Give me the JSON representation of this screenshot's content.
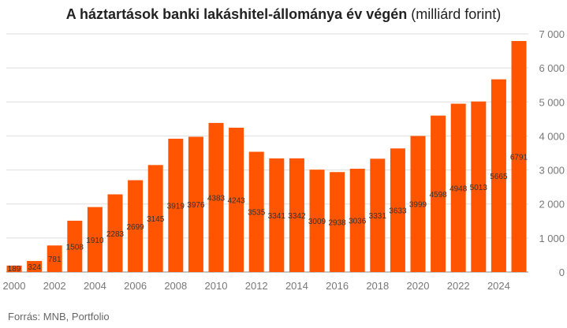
{
  "chart_data": {
    "type": "bar",
    "title": "A háztartások banki lakáshitel-állománya év végén",
    "subtitle": "(milliárd forint)",
    "xlabel": "",
    "ylabel": "",
    "categories": [
      "2000",
      "2001",
      "2002",
      "2003",
      "2004",
      "2005",
      "2006",
      "2007",
      "2008",
      "2009",
      "2010",
      "2011",
      "2012",
      "2013",
      "2014",
      "2015",
      "2016",
      "2017",
      "2018",
      "2019",
      "2020",
      "2021",
      "2022",
      "2023",
      "2024",
      "2025"
    ],
    "values": [
      189,
      324,
      781,
      1508,
      1910,
      2283,
      2699,
      3145,
      3919,
      3976,
      4383,
      4243,
      3535,
      3341,
      3342,
      3009,
      2938,
      3036,
      3331,
      3633,
      3999,
      4598,
      4948,
      5013,
      5665,
      6791
    ],
    "x_tick_labels": [
      "2000",
      "2002",
      "2004",
      "2006",
      "2008",
      "2010",
      "2012",
      "2014",
      "2016",
      "2018",
      "2020",
      "2022",
      "2024"
    ],
    "y_tick_labels": [
      "0",
      "1 000",
      "2 000",
      "3 000",
      "4 000",
      "5 000",
      "6 000",
      "7 000"
    ],
    "ylim": [
      0,
      7000
    ],
    "grid": true,
    "y_axis_side": "right",
    "bar_color": "#ff5500",
    "source": "Forrás: MNB, Portfolio"
  }
}
